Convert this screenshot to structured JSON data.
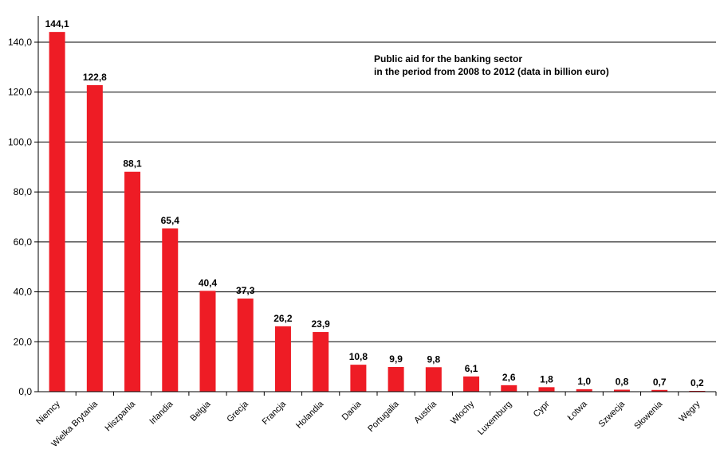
{
  "chart_data": {
    "type": "bar",
    "title_lines": [
      "Public aid for the banking sector",
      "in the period from 2008 to 2012 (data in billion euro)"
    ],
    "categories": [
      "Niemcy",
      "Wielka Brytania",
      "Hiszpania",
      "Irlandia",
      "Belgia",
      "Grecja",
      "Francja",
      "Holandia",
      "Dania",
      "Portugalia",
      "Austria",
      "Włochy",
      "Luxemburg",
      "Cypr",
      "Łotwa",
      "Szwecja",
      "Słowenia",
      "Węgry"
    ],
    "values": [
      144.1,
      122.8,
      88.1,
      65.4,
      40.4,
      37.3,
      26.2,
      23.9,
      10.8,
      9.9,
      9.8,
      6.1,
      2.6,
      1.8,
      1.0,
      0.8,
      0.7,
      0.2
    ],
    "value_labels": [
      "144,1",
      "122,8",
      "88,1",
      "65,4",
      "40,4",
      "37,3",
      "26,2",
      "23,9",
      "10,8",
      "9,9",
      "9,8",
      "6,1",
      "2,6",
      "1,8",
      "1,0",
      "0,8",
      "0,7",
      "0,2"
    ],
    "y_ticks": [
      0,
      20,
      40,
      60,
      80,
      100,
      120,
      140
    ],
    "y_tick_labels": [
      "0,0",
      "20,0",
      "40,0",
      "60,0",
      "80,0",
      "100,0",
      "120,0",
      "140,0"
    ],
    "ylim": [
      0,
      150
    ],
    "grid": true,
    "bar_color": "#ee1c25"
  }
}
